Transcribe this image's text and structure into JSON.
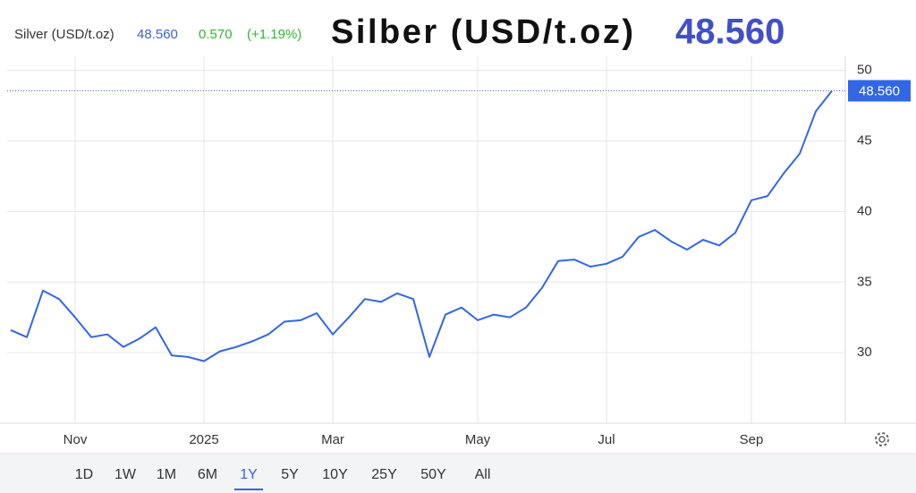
{
  "chart_data": {
    "type": "line",
    "title": "Silber (USD/t.oz)",
    "symbol": "Silver (USD/t.oz)",
    "price": "48.560",
    "change": "0.570",
    "change_percent": "(+1.19%)",
    "categories": [
      null,
      null,
      null,
      null,
      "Nov",
      null,
      null,
      null,
      null,
      null,
      null,
      null,
      "2025",
      null,
      null,
      null,
      null,
      null,
      null,
      null,
      "Mar",
      null,
      null,
      null,
      null,
      null,
      null,
      null,
      null,
      "May",
      null,
      null,
      null,
      null,
      null,
      null,
      null,
      "Jul",
      null,
      null,
      null,
      null,
      null,
      null,
      null,
      null,
      "Sep",
      null,
      null,
      null,
      null,
      null
    ],
    "series": [
      {
        "name": "Silver",
        "color": "#3366e6",
        "values": [
          31.6,
          31.1,
          34.4,
          33.8,
          32.5,
          31.1,
          31.3,
          30.4,
          31.0,
          31.8,
          29.8,
          29.7,
          29.4,
          30.1,
          30.4,
          30.8,
          31.3,
          32.2,
          32.3,
          32.8,
          31.3,
          32.5,
          33.8,
          33.6,
          34.2,
          33.8,
          29.7,
          32.7,
          33.2,
          32.3,
          32.7,
          32.5,
          33.2,
          34.6,
          36.5,
          36.6,
          36.1,
          36.3,
          36.8,
          38.2,
          38.7,
          37.9,
          37.3,
          38.0,
          37.6,
          38.5,
          40.8,
          41.1,
          42.7,
          44.1,
          47.1,
          48.56
        ],
        "value_labels": [
          null,
          null,
          null,
          null,
          null,
          null,
          null,
          null,
          null,
          null,
          null,
          null,
          null,
          null,
          null,
          null,
          null,
          null,
          null,
          null,
          null,
          null,
          null,
          null,
          null,
          null,
          null,
          null,
          null,
          null,
          null,
          null,
          null,
          null,
          null,
          null,
          null,
          null,
          null,
          null,
          null,
          null,
          null,
          null,
          null,
          null,
          null,
          null,
          null,
          null,
          null,
          "48.560"
        ]
      }
    ],
    "ylim": [
      25,
      51
    ],
    "yticks": [
      30,
      35,
      40,
      45,
      50
    ],
    "grid": true,
    "ranges": [
      "1D",
      "1W",
      "1M",
      "6M",
      "1Y",
      "5Y",
      "10Y",
      "25Y",
      "50Y",
      "All"
    ],
    "selected_range": 4
  }
}
